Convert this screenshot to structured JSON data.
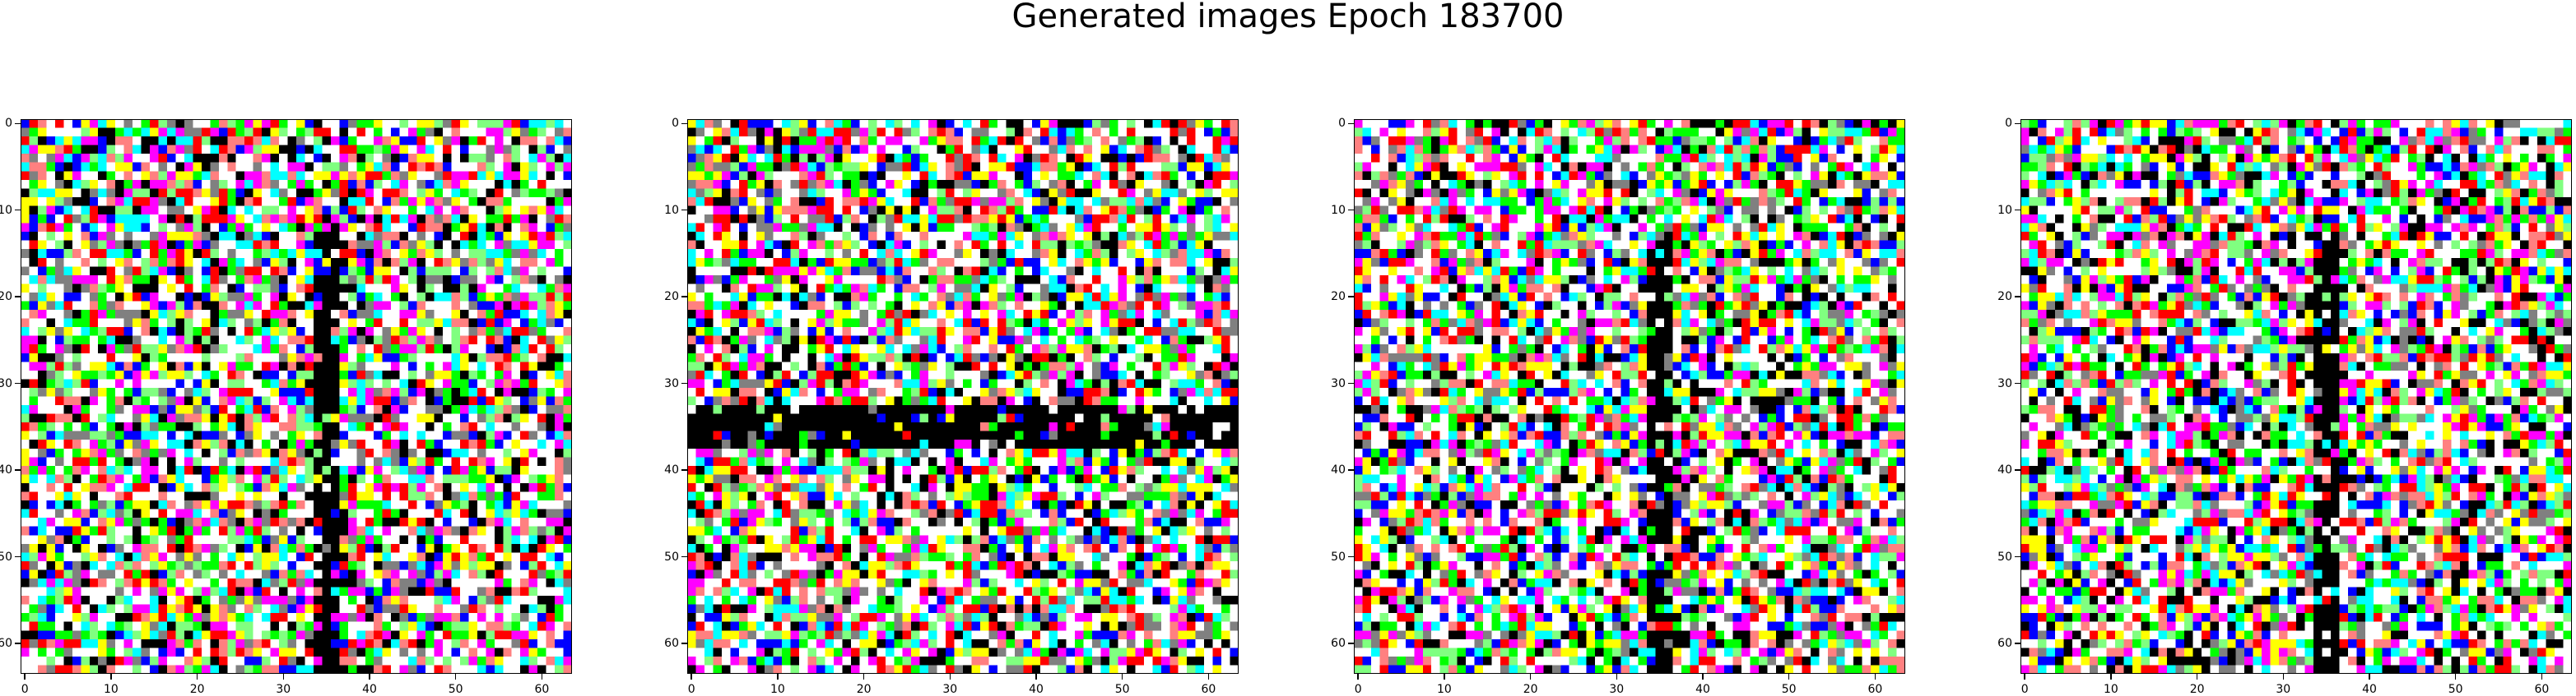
{
  "figure_title": "Generated images Epoch 183700",
  "chart_data": [
    {
      "type": "heatmap",
      "title": "",
      "image_shape": [
        64,
        64,
        3
      ],
      "xlim": [
        -0.5,
        63.5
      ],
      "ylim": [
        63.5,
        -0.5
      ],
      "x_ticks": [
        0,
        10,
        20,
        30,
        40,
        50,
        60
      ],
      "y_ticks": [
        0,
        10,
        20,
        30,
        40,
        50,
        60
      ],
      "x_tick_labels": [
        "0",
        "10",
        "20",
        "30",
        "40",
        "50",
        "60"
      ],
      "y_tick_labels": [
        "0",
        "10",
        "20",
        "30",
        "40",
        "50",
        "60"
      ],
      "palette": [
        "#ffffff",
        "#000000",
        "#ff0000",
        "#00ff00",
        "#0000ff",
        "#ffff00",
        "#00ffff",
        "#ff00ff",
        "#808080",
        "#ff8080",
        "#80ff80"
      ],
      "dark_structure": "vertical band near x=34-36",
      "seed": 11
    },
    {
      "type": "heatmap",
      "title": "",
      "image_shape": [
        64,
        64,
        3
      ],
      "xlim": [
        -0.5,
        63.5
      ],
      "ylim": [
        63.5,
        -0.5
      ],
      "x_ticks": [
        0,
        10,
        20,
        30,
        40,
        50,
        60
      ],
      "y_ticks": [
        0,
        10,
        20,
        30,
        40,
        50,
        60
      ],
      "x_tick_labels": [
        "0",
        "10",
        "20",
        "30",
        "40",
        "50",
        "60"
      ],
      "y_tick_labels": [
        "0",
        "10",
        "20",
        "30",
        "40",
        "50",
        "60"
      ],
      "palette": [
        "#ffffff",
        "#000000",
        "#ff0000",
        "#00ff00",
        "#0000ff",
        "#ffff00",
        "#00ffff",
        "#ff00ff",
        "#808080",
        "#ff8080",
        "#80ff80"
      ],
      "dark_structure": "horizontal band near y=33-37",
      "seed": 23
    },
    {
      "type": "heatmap",
      "title": "",
      "image_shape": [
        64,
        64,
        3
      ],
      "xlim": [
        -0.5,
        63.5
      ],
      "ylim": [
        63.5,
        -0.5
      ],
      "x_ticks": [
        0,
        10,
        20,
        30,
        40,
        50,
        60
      ],
      "y_ticks": [
        0,
        10,
        20,
        30,
        40,
        50,
        60
      ],
      "x_tick_labels": [
        "0",
        "10",
        "20",
        "30",
        "40",
        "50",
        "60"
      ],
      "y_tick_labels": [
        "0",
        "10",
        "20",
        "30",
        "40",
        "50",
        "60"
      ],
      "palette": [
        "#ffffff",
        "#000000",
        "#ff0000",
        "#00ff00",
        "#0000ff",
        "#ffff00",
        "#00ffff",
        "#ff00ff",
        "#808080",
        "#ff8080",
        "#80ff80"
      ],
      "dark_structure": "vertical band near x=34-36",
      "seed": 37
    },
    {
      "type": "heatmap",
      "title": "",
      "image_shape": [
        64,
        64,
        3
      ],
      "xlim": [
        -0.5,
        63.5
      ],
      "ylim": [
        63.5,
        -0.5
      ],
      "x_ticks": [
        0,
        10,
        20,
        30,
        40,
        50,
        60
      ],
      "y_ticks": [
        0,
        10,
        20,
        30,
        40,
        50,
        60
      ],
      "x_tick_labels": [
        "0",
        "10",
        "20",
        "30",
        "40",
        "50",
        "60"
      ],
      "y_tick_labels": [
        "0",
        "10",
        "20",
        "30",
        "40",
        "50",
        "60"
      ],
      "palette": [
        "#ffffff",
        "#000000",
        "#ff0000",
        "#00ff00",
        "#0000ff",
        "#ffff00",
        "#00ffff",
        "#ff00ff",
        "#808080",
        "#ff8080",
        "#80ff80"
      ],
      "dark_structure": "vertical band near x=34-36",
      "seed": 41
    }
  ]
}
